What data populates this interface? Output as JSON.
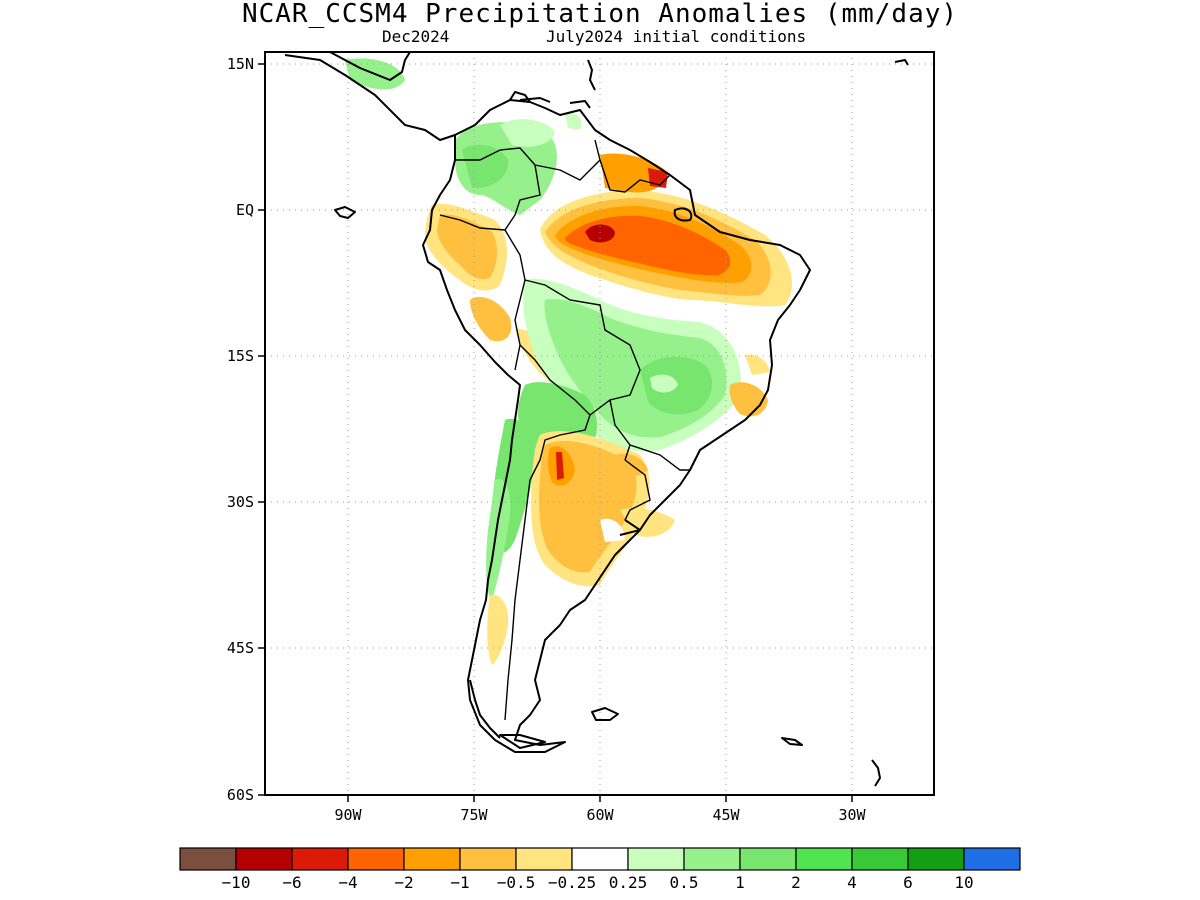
{
  "header": {
    "title": "NCAR_CCSM4 Precipitation Anomalies (mm/day)",
    "subtitle_left": "Dec2024",
    "subtitle_right": "July2024 initial conditions"
  },
  "axes": {
    "lat_labels": [
      "15N",
      "EQ",
      "15S",
      "30S",
      "45S",
      "60S"
    ],
    "lat_values": [
      15,
      0,
      -15,
      -30,
      -45,
      -60
    ],
    "lon_labels": [
      "90W",
      "75W",
      "60W",
      "45W",
      "30W"
    ],
    "lon_values": [
      -90,
      -75,
      -60,
      -45,
      -30
    ],
    "lon_range": [
      -100,
      -20
    ],
    "lat_range": [
      -60,
      15
    ],
    "grid": "dotted"
  },
  "colorbar": {
    "labels": [
      "−10",
      "−6",
      "−4",
      "−2",
      "−1",
      "−0.5",
      "−0.25",
      "0.25",
      "0.5",
      "1",
      "2",
      "4",
      "6",
      "10"
    ],
    "colors": [
      "#7a4f40",
      "#b60000",
      "#dc1a08",
      "#ff6400",
      "#ffa000",
      "#ffc040",
      "#ffe480",
      "#ffffff",
      "#c8ffbe",
      "#96f08c",
      "#78e66e",
      "#50e450",
      "#38c838",
      "#12a012",
      "#1e6ee6"
    ]
  },
  "chart_data": {
    "type": "heatmap",
    "variable": "Precipitation Anomalies (mm/day)",
    "regions": [
      {
        "lon": -59,
        "lat": -2,
        "anomaly": -6
      },
      {
        "lon": -52,
        "lat": -5,
        "anomaly": -4
      },
      {
        "lon": -49,
        "lat": -5.5,
        "anomaly": -2
      },
      {
        "lon": -60,
        "lat": 3,
        "anomaly": -1
      },
      {
        "lon": -53,
        "lat": 4,
        "anomaly": -2
      },
      {
        "lon": -77,
        "lat": -4,
        "anomaly": -1
      },
      {
        "lon": -75,
        "lat": -12,
        "anomaly": -0.5
      },
      {
        "lon": -64,
        "lat": -27,
        "anomaly": -2
      },
      {
        "lon": -63,
        "lat": -33,
        "anomaly": -1
      },
      {
        "lon": -41,
        "lat": -20,
        "anomaly": -1
      },
      {
        "lon": -73,
        "lat": 5,
        "anomaly": 1
      },
      {
        "lon": -47,
        "lat": -17,
        "anomaly": 2
      },
      {
        "lon": -66,
        "lat": -19,
        "anomaly": 1
      },
      {
        "lon": -70,
        "lat": -30,
        "anomaly": 1
      }
    ]
  }
}
